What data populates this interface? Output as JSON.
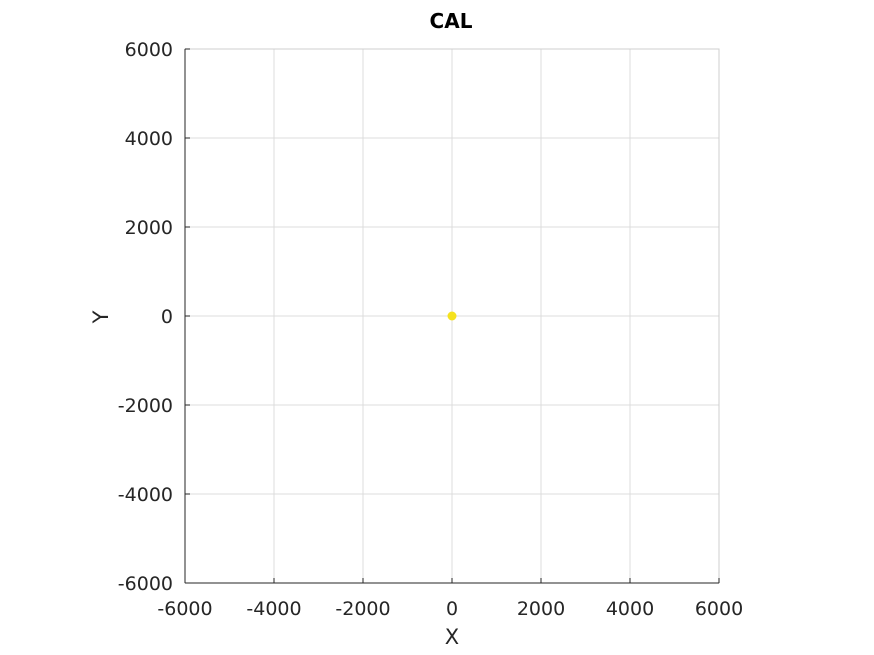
{
  "chart_data": {
    "type": "scatter",
    "title": "CAL",
    "xlabel": "X",
    "ylabel": "Y",
    "xlim": [
      -6000,
      6000
    ],
    "ylim": [
      -6000,
      6000
    ],
    "x_ticks": [
      "-6000",
      "-4000",
      "-2000",
      "0",
      "2000",
      "4000",
      "6000"
    ],
    "y_ticks": [
      "6000",
      "4000",
      "2000",
      "0",
      "-2000",
      "-4000",
      "-6000"
    ],
    "grid": true,
    "series": [
      {
        "color": "#f5e21e",
        "points": [
          {
            "x": 0,
            "y": 0
          }
        ]
      }
    ]
  }
}
